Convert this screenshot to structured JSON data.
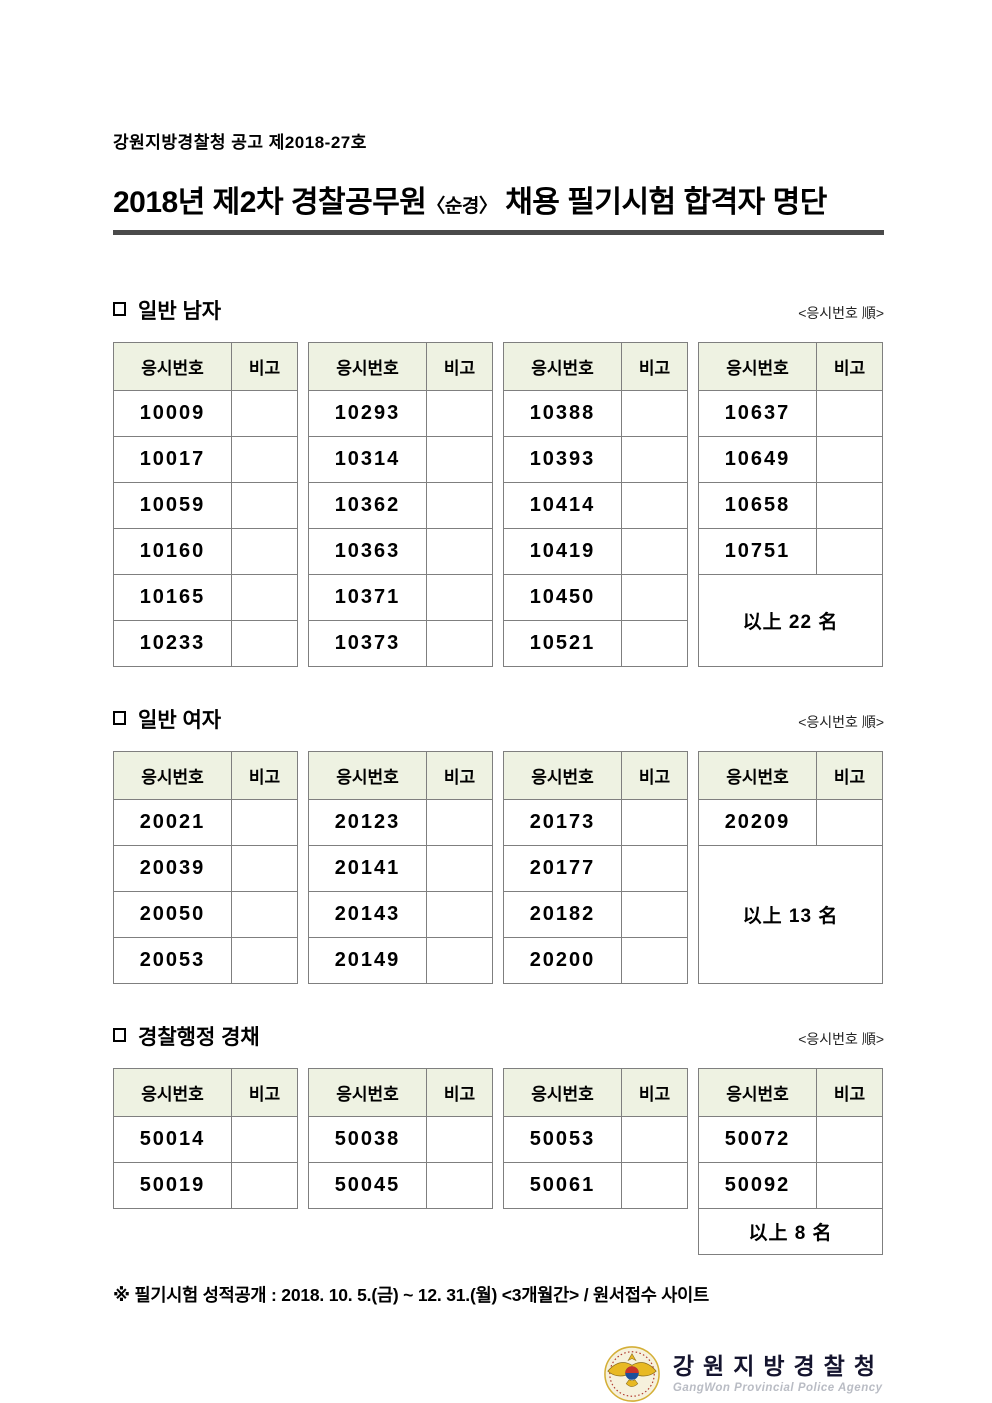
{
  "page": {
    "notice_no": "강원지방경찰청 공고 제2018-27호",
    "title": {
      "part1": "2018년 제2차 경찰공무원",
      "small": "〈순경〉",
      "part2": " 채용 필기시험 합격자 명단"
    }
  },
  "table_headers": {
    "col_exam_no": "응시번호",
    "col_note": "비고"
  },
  "sections": [
    {
      "label": "일반 남자",
      "order_note": "<응시번호 順>",
      "tables": [
        {
          "rows": [
            "10009",
            "10017",
            "10059",
            "10160",
            "10165",
            "10233"
          ]
        },
        {
          "rows": [
            "10293",
            "10314",
            "10362",
            "10363",
            "10371",
            "10373"
          ]
        },
        {
          "rows": [
            "10388",
            "10393",
            "10414",
            "10419",
            "10450",
            "10521"
          ]
        },
        {
          "rows": [
            "10637",
            "10649",
            "10658",
            "10751"
          ],
          "summary": {
            "text": "以上 22 名",
            "span": 2
          }
        }
      ]
    },
    {
      "label": "일반 여자",
      "order_note": "<응시번호 順>",
      "tables": [
        {
          "rows": [
            "20021",
            "20039",
            "20050",
            "20053"
          ]
        },
        {
          "rows": [
            "20123",
            "20141",
            "20143",
            "20149"
          ]
        },
        {
          "rows": [
            "20173",
            "20177",
            "20182",
            "20200"
          ]
        },
        {
          "rows": [
            "20209"
          ],
          "summary": {
            "text": "以上 13 名",
            "span": 3
          }
        }
      ]
    },
    {
      "label": "경찰행정 경채",
      "order_note": "<응시번호 順>",
      "tables": [
        {
          "rows": [
            "50014",
            "50019"
          ]
        },
        {
          "rows": [
            "50038",
            "50045"
          ]
        },
        {
          "rows": [
            "50053",
            "50061"
          ]
        },
        {
          "rows": [
            "50072",
            "50092"
          ],
          "summary": {
            "text": "以上 8 名",
            "span": 1
          }
        }
      ]
    }
  ],
  "footer": {
    "note": "※ 필기시험 성적공개 : 2018. 10. 5.(금) ~ 12. 31.(월) <3개월간> / 원서접수 사이트",
    "logo": {
      "org_kr": "강원지방경찰청",
      "org_en": "GangWon Provincial Police Agency"
    }
  },
  "colors": {
    "table_header_bg": "#eef2e2",
    "table_border": "#7f7f7f",
    "title_rule": "#4a4a4a",
    "emblem_gold": "#e8b923",
    "emblem_ring": "#f6f1dc",
    "taegeuk_red": "#c8332a",
    "taegeuk_blue": "#1b4f9c",
    "logo_text": "#14142e",
    "logo_text_en": "#b9bcc4"
  }
}
